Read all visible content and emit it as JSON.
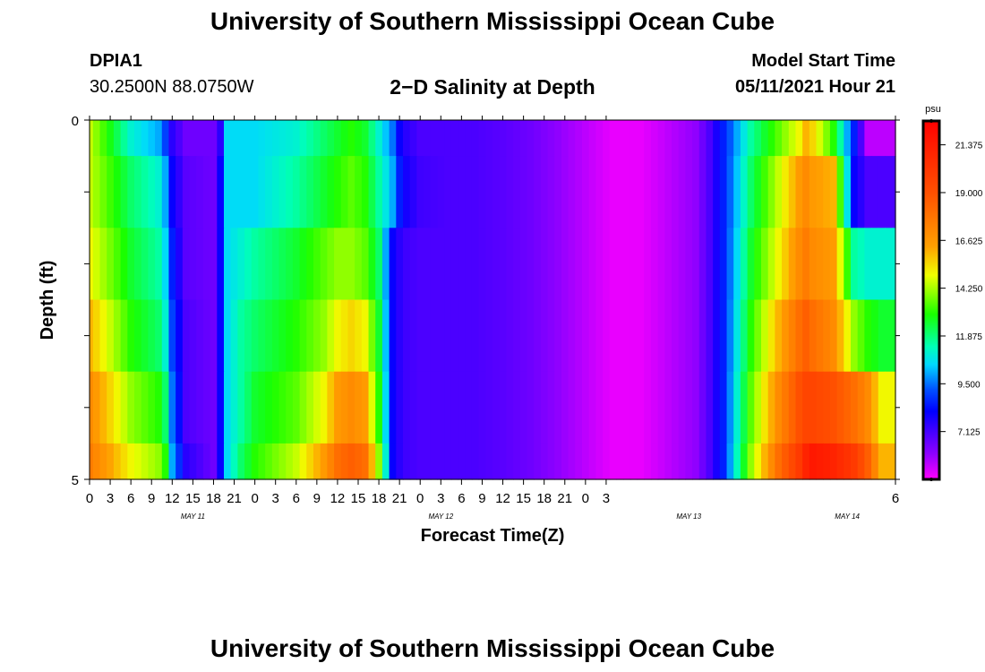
{
  "header": {
    "main_title": "University of Southern Mississippi Ocean Cube",
    "station_id": "DPIA1",
    "station_coords": "30.2500N  88.0750W",
    "chart_title": "2−D Salinity at Depth",
    "model_start_label": "Model Start Time",
    "model_start_value": "05/11/2021 Hour 21",
    "footer_title": "University of Southern Mississippi Ocean Cube"
  },
  "chart_data": {
    "type": "heatmap",
    "title": "2−D Salinity at Depth",
    "xlabel": "Forecast Time(Z)",
    "ylabel": "Depth (ft)",
    "ylim": [
      0,
      5
    ],
    "y_tick_labels": [
      "0",
      "5"
    ],
    "x_tick_labels": [
      "0",
      "3",
      "6",
      "9",
      "12",
      "15",
      "18",
      "21",
      "0",
      "3",
      "6",
      "9",
      "12",
      "15",
      "18",
      "21",
      "0",
      "3",
      "6",
      "9",
      "12",
      "15",
      "18",
      "21",
      "0",
      "3",
      "6"
    ],
    "date_labels": [
      {
        "label": "MAY 11",
        "x_hour": 15
      },
      {
        "label": "MAY 12",
        "x_hour": 51
      },
      {
        "label": "MAY 13",
        "x_hour": 87
      },
      {
        "label": "MAY 14",
        "x_hour": 110
      }
    ],
    "x_hours": [
      0,
      1,
      2,
      3,
      4,
      5,
      6,
      7,
      8,
      9,
      10,
      11,
      12,
      13,
      14,
      15,
      16,
      17,
      18,
      19,
      20,
      21,
      22,
      23,
      24,
      25,
      26,
      27,
      28,
      29,
      30,
      31,
      32,
      33,
      34,
      35,
      36,
      37,
      38,
      39,
      40,
      41,
      42,
      43,
      44,
      45,
      46,
      47,
      48,
      49,
      50,
      51,
      52,
      53,
      54,
      55,
      56,
      57,
      58,
      59,
      60,
      61,
      62,
      63,
      64,
      65,
      66,
      67,
      68,
      69,
      70,
      71,
      72,
      73,
      74,
      75,
      76,
      77,
      78,
      79,
      80,
      81,
      82,
      83,
      84,
      85,
      86,
      87,
      88,
      89,
      90,
      91,
      92,
      93,
      94,
      95,
      96,
      97,
      98,
      99,
      100,
      101,
      102,
      103,
      104,
      105,
      106,
      107,
      108,
      109,
      110,
      111,
      112,
      113,
      114,
      115,
      116,
      117
    ],
    "depth_levels": [
      "0.0–0.5",
      "0.5–1.5",
      "1.5–2.5",
      "2.5–3.5",
      "3.5–4.5",
      "4.5–5.0"
    ],
    "key_times": [
      0,
      6,
      10,
      11,
      12,
      14,
      18,
      19,
      20,
      22,
      24,
      30,
      34,
      36,
      38,
      40,
      42,
      44,
      45,
      46,
      48,
      52,
      56,
      60,
      64,
      68,
      72,
      76,
      80,
      84,
      88,
      90,
      92,
      96,
      100,
      103,
      104,
      105,
      108,
      111,
      113,
      115,
      117
    ],
    "salinity_psu_by_level": [
      [
        14.5,
        11.0,
        10.0,
        9.0,
        7.5,
        6.5,
        6.5,
        7.5,
        10.5,
        10.5,
        10.5,
        11.0,
        12.0,
        12.5,
        13.0,
        12.5,
        11.0,
        9.5,
        8.0,
        7.5,
        7.0,
        7.0,
        7.0,
        6.8,
        6.5,
        6.0,
        5.5,
        5.0,
        5.0,
        5.5,
        6.0,
        7.0,
        8.5,
        11.5,
        13.5,
        15.0,
        16.0,
        15.5,
        13.0,
        8.5,
        5.5,
        5.5,
        5.5
      ],
      [
        14.5,
        12.0,
        11.0,
        10.0,
        8.0,
        6.8,
        6.5,
        8.0,
        10.5,
        10.5,
        10.5,
        11.5,
        12.5,
        13.0,
        13.5,
        13.0,
        11.5,
        10.0,
        8.5,
        7.8,
        7.2,
        7.0,
        7.0,
        6.8,
        6.5,
        6.0,
        5.5,
        5.0,
        5.0,
        5.5,
        6.0,
        7.0,
        8.5,
        12.0,
        14.5,
        16.5,
        17.0,
        16.5,
        16.0,
        8.0,
        7.0,
        7.0,
        7.0
      ],
      [
        15.0,
        12.5,
        11.5,
        10.5,
        8.5,
        6.8,
        6.5,
        8.0,
        10.5,
        11.0,
        11.5,
        12.5,
        13.5,
        14.0,
        14.0,
        13.5,
        12.0,
        8.0,
        7.5,
        7.2,
        7.0,
        7.0,
        7.0,
        6.8,
        6.5,
        6.0,
        5.5,
        5.0,
        5.0,
        5.5,
        6.0,
        7.0,
        8.5,
        12.5,
        15.0,
        17.0,
        17.5,
        17.0,
        16.5,
        11.5,
        11.0,
        11.0,
        11.0
      ],
      [
        16.0,
        13.0,
        12.0,
        11.0,
        9.0,
        7.0,
        6.5,
        8.0,
        10.5,
        11.5,
        12.0,
        13.0,
        14.0,
        15.0,
        15.5,
        15.0,
        12.5,
        8.0,
        7.5,
        7.2,
        7.0,
        7.0,
        7.0,
        6.8,
        6.5,
        6.0,
        5.5,
        5.0,
        5.0,
        5.5,
        6.0,
        7.0,
        8.5,
        13.0,
        16.0,
        18.0,
        18.5,
        18.0,
        17.0,
        14.0,
        13.0,
        12.5,
        12.5
      ],
      [
        17.0,
        14.0,
        13.0,
        12.0,
        9.5,
        7.0,
        6.5,
        8.0,
        10.5,
        11.5,
        12.5,
        13.5,
        15.0,
        16.5,
        17.0,
        16.5,
        13.0,
        8.0,
        7.5,
        7.2,
        7.0,
        7.0,
        7.0,
        6.8,
        6.5,
        6.0,
        5.5,
        5.0,
        5.0,
        5.5,
        6.0,
        7.0,
        8.5,
        13.5,
        17.0,
        19.0,
        19.5,
        19.5,
        19.0,
        18.0,
        17.0,
        15.0,
        15.0
      ],
      [
        17.5,
        15.0,
        14.0,
        13.0,
        10.0,
        7.5,
        6.5,
        8.0,
        10.5,
        12.0,
        13.0,
        14.5,
        16.5,
        18.0,
        18.5,
        18.0,
        14.0,
        8.0,
        7.5,
        7.2,
        7.0,
        7.0,
        7.0,
        6.8,
        6.5,
        6.0,
        5.5,
        5.0,
        5.0,
        5.5,
        6.0,
        7.0,
        8.5,
        14.0,
        18.0,
        20.0,
        21.0,
        21.5,
        21.0,
        20.0,
        18.5,
        16.0,
        16.0
      ]
    ],
    "colorbar": {
      "unit": "psu",
      "min": 4.75,
      "max": 22.56,
      "tick_labels": [
        "21.375",
        "19.000",
        "16.625",
        "14.250",
        "11.875",
        "9.500",
        "7.125"
      ],
      "tick_values": [
        21.375,
        19.0,
        16.625,
        14.25,
        11.875,
        9.5,
        7.125
      ]
    },
    "grid": false
  }
}
